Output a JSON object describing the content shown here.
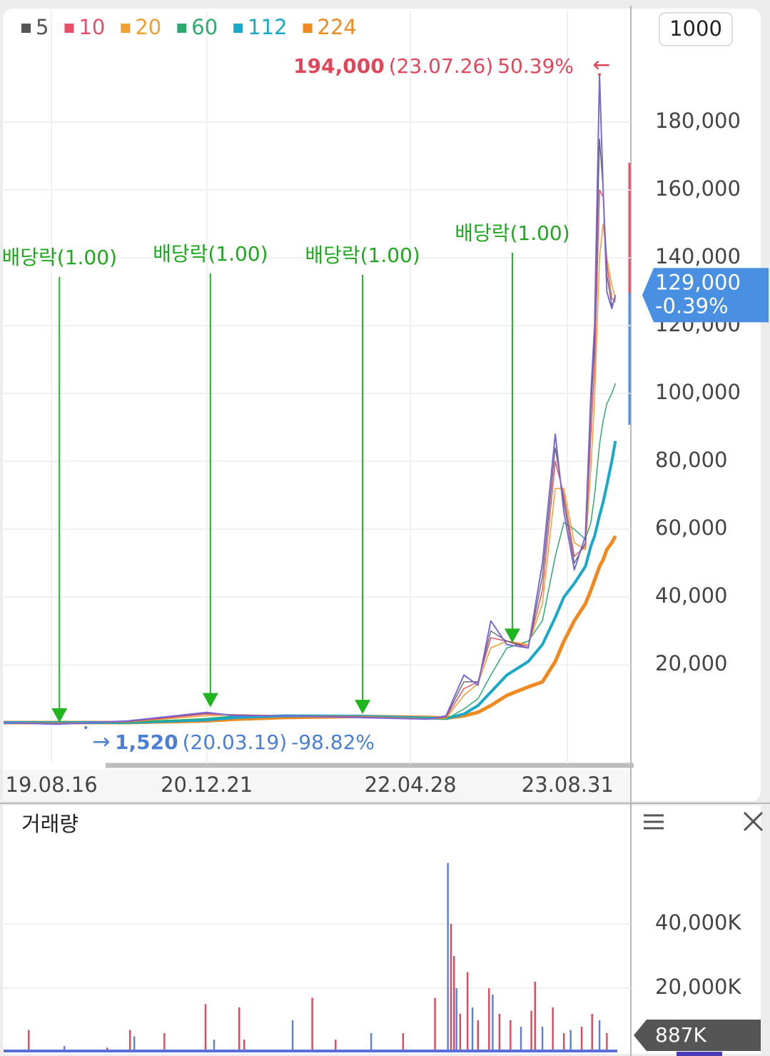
{
  "toolbar": {
    "interval_button": "1000"
  },
  "chart_data": [
    {
      "type": "line",
      "x": [
        0,
        8.7,
        20.3,
        33.1,
        37.8,
        45.9,
        57.6,
        69.2,
        72.1,
        75.0,
        77.3,
        79.4,
        82.0,
        85.5,
        87.8,
        89.9,
        91.3,
        93.0,
        94.8,
        95.7,
        96.3,
        97.1,
        97.7,
        98.3,
        99.1,
        99.7
      ],
      "xlim": [
        0,
        100
      ],
      "xticks": [
        {
          "value": 7.8,
          "label": "19.08.16"
        },
        {
          "value": 33.1,
          "label": "20.12.21"
        },
        {
          "value": 66.3,
          "label": "22.04.28"
        },
        {
          "value": 91.9,
          "label": "23.08.31"
        }
      ],
      "ylim": [
        -9000,
        212000
      ],
      "yticks": [
        {
          "value": 20000,
          "label": "20,000"
        },
        {
          "value": 40000,
          "label": "40,000"
        },
        {
          "value": 60000,
          "label": "60,000"
        },
        {
          "value": 80000,
          "label": "80,000"
        },
        {
          "value": 100000,
          "label": "100,000"
        },
        {
          "value": 120000,
          "label": "120,000"
        },
        {
          "value": 140000,
          "label": "140,000"
        },
        {
          "value": 160000,
          "label": "160,000"
        },
        {
          "value": 180000,
          "label": "180,000"
        }
      ],
      "grid": true,
      "price": {
        "color": "#7b68d8",
        "values": [
          3000,
          2500,
          3500,
          6000,
          5000,
          5000,
          4500,
          4000,
          5000,
          17000,
          14000,
          33000,
          26000,
          25000,
          50000,
          88000,
          65000,
          48000,
          58000,
          100000,
          120000,
          194000,
          160000,
          130000,
          125000,
          129000
        ]
      },
      "series": [
        {
          "name": "5",
          "color": "#555555",
          "values": [
            3000,
            2600,
            3400,
            5800,
            5200,
            5000,
            4600,
            4000,
            4800,
            15000,
            15000,
            30000,
            27000,
            25000,
            46000,
            84000,
            68000,
            50000,
            56000,
            95000,
            115000,
            175000,
            160000,
            135000,
            126000,
            128000
          ]
        },
        {
          "name": "10",
          "color": "#e8506a",
          "values": [
            3000,
            2700,
            3300,
            5500,
            5300,
            5000,
            4700,
            4000,
            4600,
            13000,
            15000,
            28000,
            27000,
            25500,
            42000,
            80000,
            70000,
            52000,
            55000,
            88000,
            108000,
            160000,
            158000,
            138000,
            128000,
            127000
          ]
        },
        {
          "name": "20",
          "color": "#f0a030",
          "values": [
            3000,
            2800,
            3200,
            5000,
            5300,
            5000,
            4800,
            4100,
            4300,
            11000,
            14500,
            25000,
            27000,
            26000,
            38000,
            72000,
            72000,
            56000,
            54000,
            78000,
            98000,
            140000,
            150000,
            140000,
            132000,
            128000
          ]
        },
        {
          "name": "60",
          "color": "#2eaa70",
          "values": [
            3000,
            3000,
            3000,
            4200,
            5000,
            5000,
            4900,
            4200,
            4000,
            7000,
            10000,
            17000,
            25000,
            27000,
            33000,
            52000,
            62000,
            60000,
            57000,
            62000,
            70000,
            85000,
            92000,
            97000,
            100000,
            103000
          ]
        },
        {
          "name": "112",
          "color": "#1aa8c8",
          "values": [
            3000,
            3000,
            3000,
            3800,
            4500,
            5000,
            4900,
            4300,
            4200,
            5500,
            8000,
            12000,
            17000,
            21000,
            26000,
            34000,
            40000,
            44000,
            49000,
            55000,
            58000,
            64000,
            68000,
            73000,
            80000,
            86000
          ]
        },
        {
          "name": "224",
          "color": "#f08a20",
          "values": [
            3000,
            3000,
            3000,
            3500,
            4000,
            4500,
            4800,
            4500,
            4300,
            5000,
            6000,
            8000,
            11000,
            13500,
            15000,
            21000,
            27000,
            33000,
            38000,
            42000,
            45000,
            49000,
            51000,
            54000,
            56000,
            58000
          ]
        }
      ],
      "max_label": {
        "x": 97.1,
        "value": 194000,
        "value_label": "194,000",
        "date": "(23.07.26)",
        "change": "50.39%",
        "arrow": "←"
      },
      "min_label": {
        "x": 13.4,
        "value": 1520,
        "value_label": "1,520",
        "date": "(20.03.19)",
        "change": "-98.82%",
        "arrow": "→"
      },
      "annotations": [
        {
          "text": "배당락(1.00)",
          "x": 9.1,
          "y": 3000
        },
        {
          "text": "배당락(1.00)",
          "x": 33.7,
          "y": 7500
        },
        {
          "text": "배당락(1.00)",
          "x": 58.5,
          "y": 5500
        },
        {
          "text": "배당락(1.00)",
          "x": 82.9,
          "y": 26500
        }
      ],
      "current": {
        "value": 129000,
        "value_label": "129,000",
        "change": "-0.39%"
      }
    },
    {
      "type": "bar",
      "title": "거래량",
      "x": [
        4.1,
        9.9,
        16.9,
        20.6,
        21.3,
        26.2,
        32.9,
        34.3,
        38.4,
        39.2,
        47.1,
        50.3,
        54.1,
        59.9,
        65.1,
        70.3,
        72.4,
        72.9,
        73.4,
        73.8,
        74.4,
        75.6,
        76.4,
        77.3,
        79.1,
        79.7,
        80.8,
        82.6,
        84.3,
        86.0,
        86.6,
        87.8,
        89.5,
        91.3,
        92.4,
        94.2,
        95.9,
        97.1,
        98.3
      ],
      "values": [
        7000,
        2000,
        1500,
        7000,
        5000,
        6000,
        15000,
        4000,
        14000,
        4000,
        10000,
        17000,
        4000,
        6000,
        6000,
        17000,
        59000,
        40000,
        30000,
        20000,
        12000,
        25000,
        14000,
        10000,
        20000,
        18000,
        12000,
        10000,
        8000,
        13000,
        22000,
        8000,
        14000,
        6000,
        7000,
        8000,
        12000,
        10000,
        6000
      ],
      "color": "#e0475a",
      "xlim": [
        0,
        100
      ],
      "ylim": [
        0,
        75000
      ],
      "yticks": [
        {
          "value": 20000,
          "label": "20,000K"
        },
        {
          "value": 40000,
          "label": "40,000K"
        }
      ],
      "grid": true,
      "current": {
        "value": 887,
        "value_label": "887K"
      }
    }
  ]
}
